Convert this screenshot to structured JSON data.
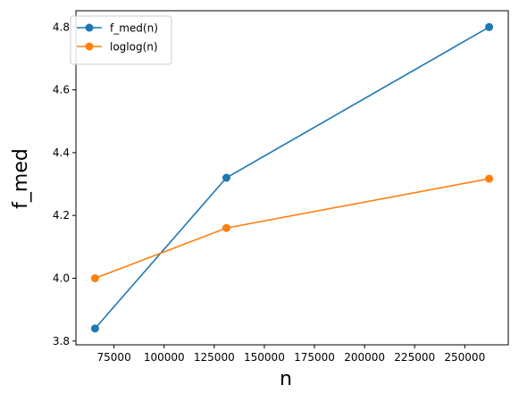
{
  "chart_data": {
    "type": "line",
    "title": "",
    "xlabel": "n",
    "ylabel": "f_med",
    "x": [
      65536,
      131072,
      262144
    ],
    "xlim": [
      56000,
      271700
    ],
    "ylim": [
      3.788,
      4.852
    ],
    "xticks": [
      75000,
      100000,
      125000,
      150000,
      175000,
      200000,
      225000,
      250000
    ],
    "xtick_labels": [
      "75000",
      "100000",
      "125000",
      "150000",
      "175000",
      "200000",
      "225000",
      "250000"
    ],
    "yticks": [
      3.8,
      4.0,
      4.2,
      4.4,
      4.6,
      4.8
    ],
    "ytick_labels": [
      "3.8",
      "4.0",
      "4.2",
      "4.4",
      "4.6",
      "4.8"
    ],
    "grid": false,
    "legend_position": "top-left",
    "series": [
      {
        "name": "f_med(n)",
        "color": "#1f77b4",
        "marker": "circle",
        "values": [
          3.84,
          4.32,
          4.8
        ]
      },
      {
        "name": "loglog(n)",
        "color": "#ff7f0e",
        "marker": "circle",
        "values": [
          4.0,
          4.16,
          4.317
        ]
      }
    ]
  }
}
